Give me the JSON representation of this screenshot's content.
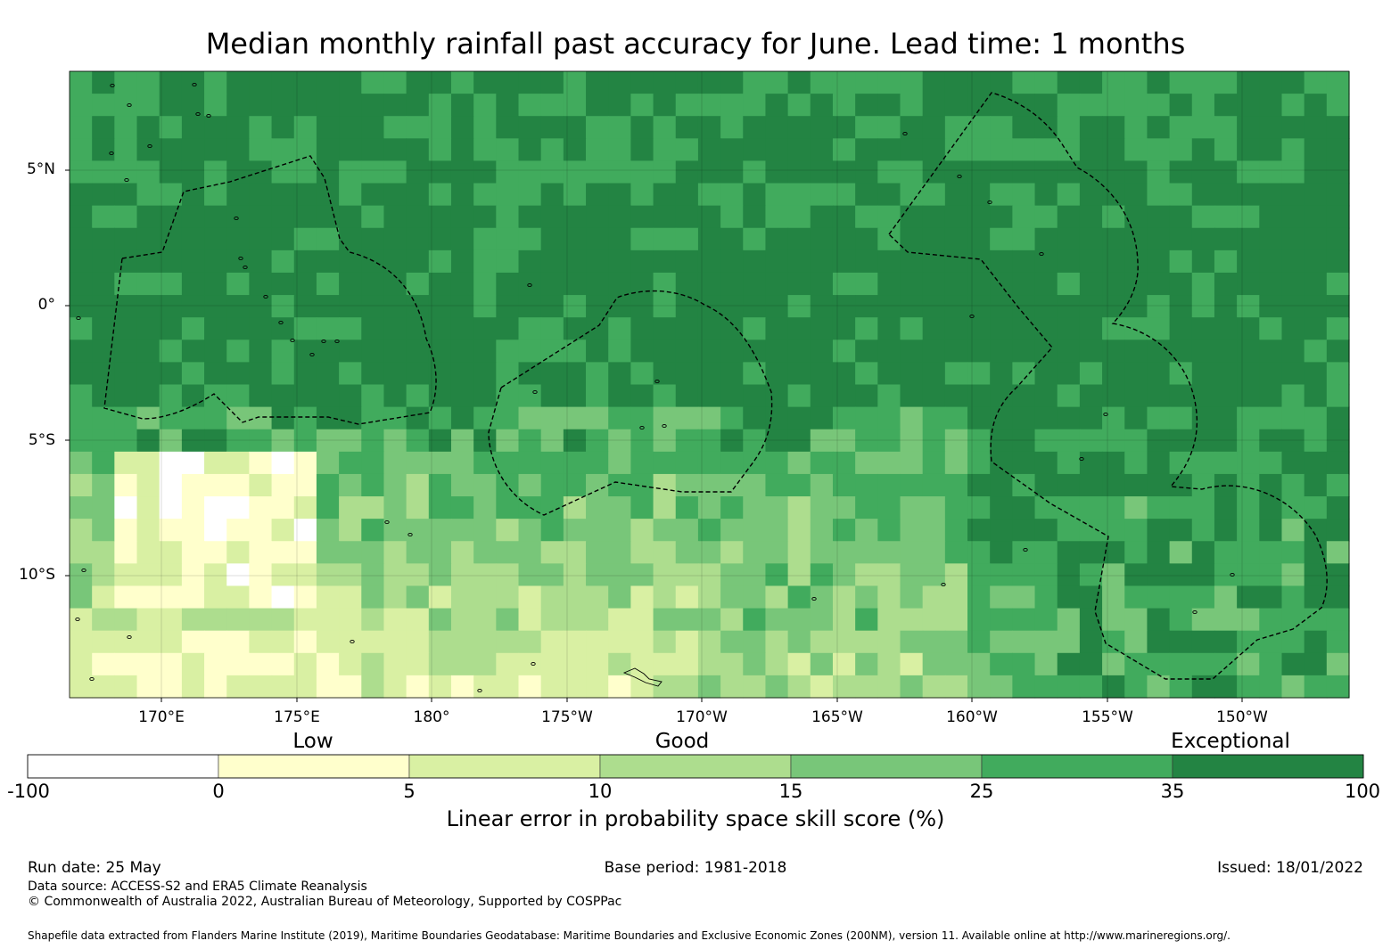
{
  "title": "Median monthly rainfall past accuracy for June. Lead time: 1 months",
  "map": {
    "lat_labels": [
      "5°N",
      "0°",
      "5°S",
      "10°S"
    ],
    "lon_labels": [
      "170°E",
      "175°E",
      "180°",
      "175°W",
      "170°W",
      "165°W",
      "160°W",
      "155°W",
      "150°W"
    ],
    "colors": {
      "below_0": "#ffffff",
      "0_5": "#ffffcc",
      "5_10": "#d9f0a3",
      "10_15": "#addd8e",
      "15_25": "#78c679",
      "25_35": "#41ab5d",
      "35_100": "#238443"
    }
  },
  "legend": {
    "categories": [
      "Low",
      "Good",
      "Exceptional"
    ],
    "ticks": [
      "-100",
      "0",
      "5",
      "10",
      "15",
      "25",
      "35",
      "100"
    ],
    "title": "Linear error in probability space skill score (%)"
  },
  "footer": {
    "run_date": "Run date: 25 May",
    "base_period": "Base period: 1981-2018",
    "issued": "Issued: 18/01/2022",
    "data_source": "Data source: ACCESS-S2 and ERA5 Climate Reanalysis",
    "copyright": "© Commonwealth of Australia 2022, Australian Bureau of Meteorology, Supported by COSPPac",
    "shapefile": "Shapefile data extracted from Flanders Marine Institute (2019), Maritime Boundaries Geodatabase: Maritime Boundaries and Exclusive Economic Zones (200NM), version 11. Available online at http://www.marineregions.org/."
  }
}
